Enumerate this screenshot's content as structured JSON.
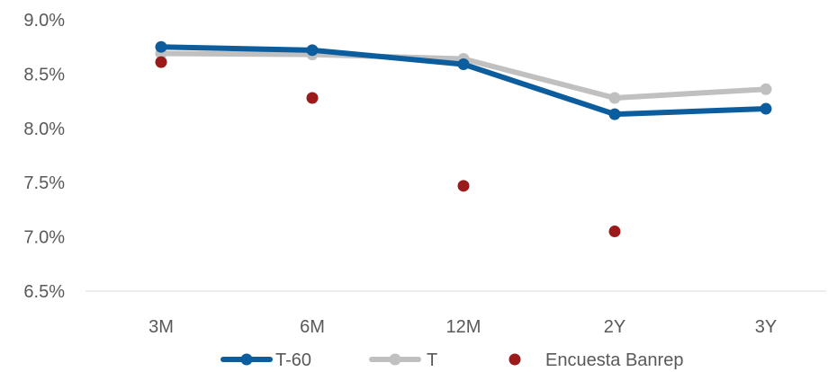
{
  "chart_data": {
    "type": "line",
    "categories": [
      "3M",
      "6M",
      "12M",
      "2Y",
      "3Y"
    ],
    "y_tick_labels": [
      "6.5%",
      "7.0%",
      "7.5%",
      "8.0%",
      "8.5%",
      "9.0%"
    ],
    "ylim": [
      6.5,
      9.0
    ],
    "grid": "horizontal-baseline-only",
    "legend_position": "bottom",
    "series": [
      {
        "name": "T-60",
        "kind": "line",
        "color": "#0b5d9e",
        "values": [
          8.75,
          8.72,
          8.59,
          8.13,
          8.18
        ]
      },
      {
        "name": "T",
        "kind": "line",
        "color": "#c0c0c0",
        "values": [
          8.69,
          8.68,
          8.64,
          8.28,
          8.36
        ]
      },
      {
        "name": "Encuesta Banrep",
        "kind": "scatter",
        "color": "#9b1b1b",
        "values": [
          8.61,
          8.28,
          7.47,
          7.05,
          null
        ]
      }
    ]
  }
}
